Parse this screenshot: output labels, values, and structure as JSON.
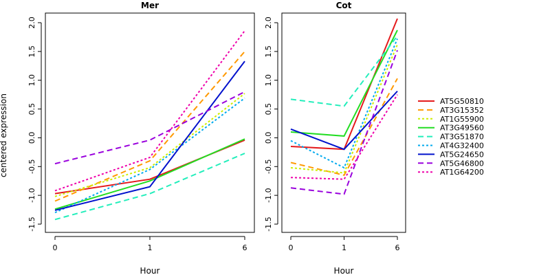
{
  "chart_data": {
    "type": "line",
    "ylabel": "centered expression",
    "xlabel": "Hour",
    "x": [
      "0",
      "1",
      "6"
    ],
    "ylim": [
      -1.5,
      2.0
    ],
    "yticks": [
      "-1.5",
      "-1.0",
      "-0.5",
      "0.0",
      "0.5",
      "1.0",
      "1.5",
      "2.0"
    ],
    "legend_position": "right",
    "grid": false,
    "series": [
      {
        "name": "AT5G50810",
        "color": "#e41a1c",
        "dash": "solid"
      },
      {
        "name": "AT3G15352",
        "color": "#ff9900",
        "dash": "long"
      },
      {
        "name": "AT1G55900",
        "color": "#ccee00",
        "dash": "short"
      },
      {
        "name": "AT3G49560",
        "color": "#22dd22",
        "dash": "solid"
      },
      {
        "name": "AT3G51870",
        "color": "#22eebb",
        "dash": "long"
      },
      {
        "name": "AT4G32400",
        "color": "#00aaee",
        "dash": "short"
      },
      {
        "name": "AT5G24650",
        "color": "#0011cc",
        "dash": "solid"
      },
      {
        "name": "AT5G46800",
        "color": "#9900dd",
        "dash": "long"
      },
      {
        "name": "AT1G64200",
        "color": "#ee00aa",
        "dash": "short"
      }
    ],
    "panels": [
      {
        "title": "Mer",
        "values": [
          [
            -0.97,
            -0.72,
            -0.04
          ],
          [
            -1.1,
            -0.4,
            1.5
          ],
          [
            -1.02,
            -0.52,
            0.77
          ],
          [
            -1.24,
            -0.75,
            -0.02
          ],
          [
            -1.42,
            -0.97,
            -0.27
          ],
          [
            -1.3,
            -0.55,
            0.69
          ],
          [
            -1.26,
            -0.85,
            1.33
          ],
          [
            -0.45,
            -0.04,
            0.8
          ],
          [
            -0.92,
            -0.34,
            1.86
          ]
        ]
      },
      {
        "title": "Cot",
        "values": [
          [
            -0.15,
            -0.2,
            2.07
          ],
          [
            -0.43,
            -0.65,
            1.03
          ],
          [
            -0.52,
            -0.61,
            1.62
          ],
          [
            0.1,
            0.03,
            1.87
          ],
          [
            0.67,
            0.55,
            1.77
          ],
          [
            -0.05,
            -0.52,
            1.72
          ],
          [
            0.15,
            -0.2,
            0.81
          ],
          [
            -0.87,
            -0.98,
            1.52
          ],
          [
            -0.69,
            -0.72,
            0.75
          ]
        ]
      }
    ]
  }
}
